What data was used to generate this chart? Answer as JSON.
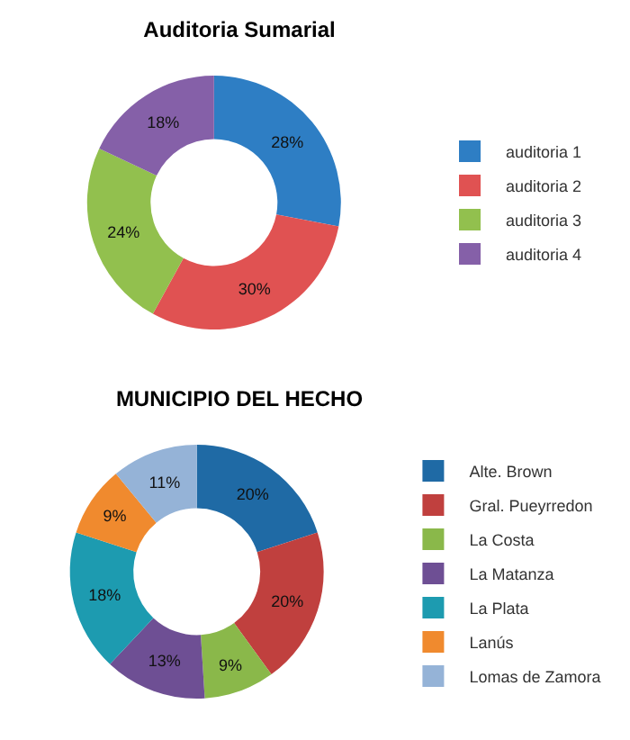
{
  "chart_data": [
    {
      "type": "donut",
      "title": "Auditoria Sumarial",
      "categories": [
        "auditoria 1",
        "auditoria 2",
        "auditoria 3",
        "auditoria 4"
      ],
      "values": [
        28,
        30,
        24,
        18
      ],
      "colors": [
        "#2e7ec4",
        "#e05252",
        "#92c04e",
        "#8560a8"
      ],
      "value_labels": [
        "28%",
        "30%",
        "24%",
        "18%"
      ],
      "legend": "right"
    },
    {
      "type": "donut",
      "title": "MUNICIPIO DEL HECHO",
      "categories": [
        "Alte. Brown",
        "Gral. Pueyrredon",
        "La Costa",
        "La Matanza",
        "La Plata",
        "Lanús",
        "Lomas de Zamora"
      ],
      "values": [
        20,
        20,
        9,
        13,
        18,
        9,
        11
      ],
      "colors": [
        "#1f6aa5",
        "#c0403e",
        "#8ab84a",
        "#6e4f94",
        "#1d9bb0",
        "#f08a2e",
        "#95b3d7"
      ],
      "value_labels": [
        "20%",
        "20%",
        "9%",
        "13%",
        "18%",
        "9%",
        "11%"
      ],
      "legend": "right"
    }
  ]
}
